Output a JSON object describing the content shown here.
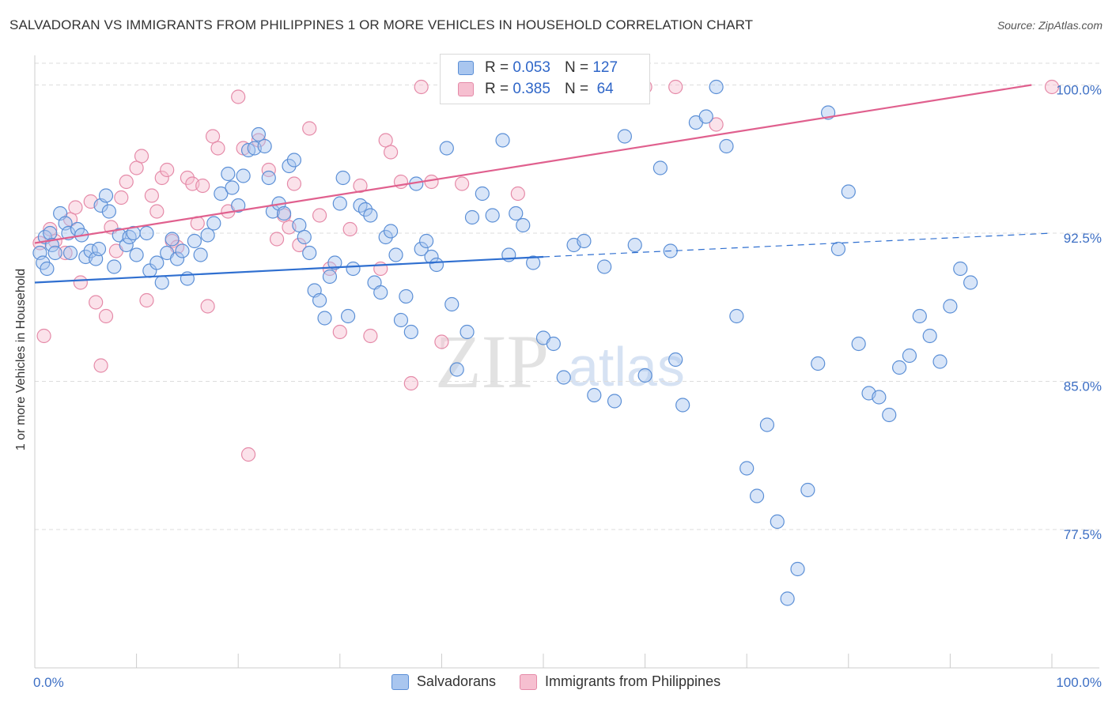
{
  "title": "SALVADORAN VS IMMIGRANTS FROM PHILIPPINES 1 OR MORE VEHICLES IN HOUSEHOLD CORRELATION CHART",
  "source": "Source: ZipAtlas.com",
  "watermark": {
    "zip": "ZIP",
    "atlas": "atlas"
  },
  "legend_top": {
    "rows": [
      {
        "r_label": "R =",
        "r_value": "0.053",
        "n_label": "N =",
        "n_value": "127"
      },
      {
        "r_label": "R =",
        "r_value": "0.385",
        "n_label": "N =",
        "n_value": "64"
      }
    ]
  },
  "colors": {
    "blue_fill": "#a9c6ef",
    "blue_stroke": "#5b8fd6",
    "blue_line": "#2f6fd0",
    "pink_fill": "#f6bfd0",
    "pink_stroke": "#e58aa8",
    "pink_line": "#e0608e",
    "axis_text": "#3d6fc4",
    "grid": "#dddddd"
  },
  "chart_data": {
    "type": "scatter",
    "title": "SALVADORAN VS IMMIGRANTS FROM PHILIPPINES 1 OR MORE VEHICLES IN HOUSEHOLD CORRELATION CHART",
    "xlabel": "",
    "ylabel": "1 or more Vehicles in Household",
    "xlim": [
      0,
      100
    ],
    "ylim": [
      70.5,
      101.5
    ],
    "x_tick_labels": [
      "0.0%",
      "100.0%"
    ],
    "y_ticks": [
      100.0,
      92.5,
      85.0,
      77.5
    ],
    "y_tick_labels": [
      "100.0%",
      "92.5%",
      "85.0%",
      "77.5%"
    ],
    "grid": true,
    "legend_position": "bottom",
    "series": [
      {
        "name": "Salvadorans",
        "color": "#5b8fd6",
        "trend": {
          "x": [
            0,
            50,
            100
          ],
          "y": [
            90.0,
            91.3,
            92.5
          ],
          "solid_until": 50
        },
        "points": [
          [
            0.5,
            91.5
          ],
          [
            0.8,
            91.0
          ],
          [
            1.2,
            90.7
          ],
          [
            1,
            92.3
          ],
          [
            1.5,
            92.5
          ],
          [
            1.7,
            91.9
          ],
          [
            2,
            91.5
          ],
          [
            2.5,
            93.5
          ],
          [
            3,
            93.0
          ],
          [
            3.3,
            92.5
          ],
          [
            3.5,
            91.5
          ],
          [
            4.2,
            92.7
          ],
          [
            4.6,
            92.4
          ],
          [
            5,
            91.3
          ],
          [
            5.5,
            91.6
          ],
          [
            6,
            91.2
          ],
          [
            6.3,
            91.7
          ],
          [
            6.5,
            93.9
          ],
          [
            7,
            94.4
          ],
          [
            7.3,
            93.6
          ],
          [
            7.8,
            90.8
          ],
          [
            8.3,
            92.4
          ],
          [
            9,
            91.9
          ],
          [
            9.3,
            92.3
          ],
          [
            9.7,
            92.5
          ],
          [
            10,
            91.4
          ],
          [
            11,
            92.5
          ],
          [
            11.3,
            90.6
          ],
          [
            12,
            91.0
          ],
          [
            12.5,
            90.0
          ],
          [
            13,
            91.5
          ],
          [
            13.5,
            92.2
          ],
          [
            14,
            91.2
          ],
          [
            14.5,
            91.6
          ],
          [
            15,
            90.2
          ],
          [
            15.7,
            92.1
          ],
          [
            16.3,
            91.4
          ],
          [
            17,
            92.4
          ],
          [
            17.6,
            93.0
          ],
          [
            18.3,
            94.5
          ],
          [
            19,
            95.5
          ],
          [
            19.4,
            94.8
          ],
          [
            20,
            93.9
          ],
          [
            20.5,
            95.4
          ],
          [
            21,
            96.7
          ],
          [
            21.6,
            96.8
          ],
          [
            22,
            97.5
          ],
          [
            22.6,
            96.9
          ],
          [
            23,
            95.3
          ],
          [
            23.4,
            93.6
          ],
          [
            24,
            94.0
          ],
          [
            24.5,
            93.5
          ],
          [
            25,
            95.9
          ],
          [
            25.5,
            96.2
          ],
          [
            26,
            92.9
          ],
          [
            26.5,
            92.3
          ],
          [
            27,
            91.5
          ],
          [
            27.5,
            89.6
          ],
          [
            28,
            89.1
          ],
          [
            28.5,
            88.2
          ],
          [
            29,
            90.3
          ],
          [
            29.5,
            91.0
          ],
          [
            30,
            94.0
          ],
          [
            30.3,
            95.3
          ],
          [
            30.8,
            88.3
          ],
          [
            31.3,
            90.7
          ],
          [
            32,
            93.9
          ],
          [
            32.5,
            93.7
          ],
          [
            33,
            93.4
          ],
          [
            33.4,
            90.0
          ],
          [
            34,
            89.5
          ],
          [
            34.5,
            92.3
          ],
          [
            35,
            92.6
          ],
          [
            35.5,
            91.4
          ],
          [
            36,
            88.1
          ],
          [
            36.5,
            89.3
          ],
          [
            37,
            87.5
          ],
          [
            37.5,
            95.0
          ],
          [
            38,
            91.7
          ],
          [
            38.5,
            92.1
          ],
          [
            39,
            91.3
          ],
          [
            39.5,
            90.9
          ],
          [
            40.5,
            96.8
          ],
          [
            41,
            88.9
          ],
          [
            41.5,
            85.6
          ],
          [
            42.5,
            87.5
          ],
          [
            43,
            93.3
          ],
          [
            44,
            94.5
          ],
          [
            45,
            93.4
          ],
          [
            46,
            97.2
          ],
          [
            46.6,
            91.4
          ],
          [
            47.3,
            93.5
          ],
          [
            48,
            92.9
          ],
          [
            49,
            91.0
          ],
          [
            50,
            87.2
          ],
          [
            51,
            86.9
          ],
          [
            52,
            85.2
          ],
          [
            53,
            91.9
          ],
          [
            54,
            92.1
          ],
          [
            55,
            84.3
          ],
          [
            56,
            90.8
          ],
          [
            57,
            84.0
          ],
          [
            58,
            97.4
          ],
          [
            59,
            91.9
          ],
          [
            60,
            85.3
          ],
          [
            61.5,
            95.8
          ],
          [
            62.5,
            91.6
          ],
          [
            63,
            86.1
          ],
          [
            63.7,
            83.8
          ],
          [
            65,
            98.1
          ],
          [
            66,
            98.4
          ],
          [
            67,
            99.9
          ],
          [
            68,
            96.9
          ],
          [
            69,
            88.3
          ],
          [
            70,
            80.6
          ],
          [
            71,
            79.2
          ],
          [
            72,
            82.8
          ],
          [
            73,
            77.9
          ],
          [
            74,
            74.0
          ],
          [
            75,
            75.5
          ],
          [
            76,
            79.5
          ],
          [
            77,
            85.9
          ],
          [
            78,
            98.6
          ],
          [
            79,
            91.7
          ],
          [
            80,
            94.6
          ],
          [
            81,
            86.9
          ],
          [
            82,
            84.4
          ],
          [
            83,
            84.2
          ],
          [
            84,
            83.3
          ],
          [
            85,
            85.7
          ],
          [
            86,
            86.3
          ],
          [
            87,
            88.3
          ],
          [
            88,
            87.3
          ],
          [
            89,
            86.0
          ],
          [
            90,
            88.8
          ],
          [
            91,
            90.7
          ],
          [
            92,
            90.0
          ]
        ]
      },
      {
        "name": "Immigrants from Philippines",
        "color": "#e58aa8",
        "trend": {
          "x": [
            0,
            98
          ],
          "y": [
            92.0,
            100.0
          ],
          "solid_until": 98
        },
        "points": [
          [
            0.5,
            92.0
          ],
          [
            0.9,
            87.3
          ],
          [
            1.5,
            92.7
          ],
          [
            2,
            92.1
          ],
          [
            3,
            91.5
          ],
          [
            3.5,
            93.2
          ],
          [
            4,
            93.8
          ],
          [
            4.5,
            90.0
          ],
          [
            5.5,
            94.1
          ],
          [
            6,
            89.0
          ],
          [
            6.5,
            85.8
          ],
          [
            7,
            88.3
          ],
          [
            7.5,
            92.8
          ],
          [
            8,
            91.6
          ],
          [
            8.5,
            94.3
          ],
          [
            9,
            95.1
          ],
          [
            10,
            95.8
          ],
          [
            10.5,
            96.4
          ],
          [
            11,
            89.1
          ],
          [
            11.5,
            94.4
          ],
          [
            12,
            93.6
          ],
          [
            12.5,
            95.3
          ],
          [
            13,
            95.7
          ],
          [
            13.5,
            92.1
          ],
          [
            14,
            91.8
          ],
          [
            15,
            95.3
          ],
          [
            15.5,
            95.0
          ],
          [
            16,
            93.0
          ],
          [
            16.5,
            94.9
          ],
          [
            17,
            88.8
          ],
          [
            17.5,
            97.4
          ],
          [
            18,
            96.8
          ],
          [
            19,
            93.6
          ],
          [
            20,
            99.4
          ],
          [
            20.5,
            96.8
          ],
          [
            21,
            81.3
          ],
          [
            22,
            97.2
          ],
          [
            23,
            95.7
          ],
          [
            23.8,
            92.2
          ],
          [
            24.5,
            93.4
          ],
          [
            25,
            92.8
          ],
          [
            25.5,
            95.0
          ],
          [
            26,
            91.9
          ],
          [
            27,
            97.8
          ],
          [
            28,
            93.4
          ],
          [
            29,
            90.7
          ],
          [
            30,
            87.5
          ],
          [
            31,
            92.7
          ],
          [
            32,
            94.9
          ],
          [
            33,
            87.3
          ],
          [
            34,
            90.7
          ],
          [
            34.5,
            97.2
          ],
          [
            35,
            96.6
          ],
          [
            36,
            95.1
          ],
          [
            37,
            84.9
          ],
          [
            38,
            99.9
          ],
          [
            39,
            95.1
          ],
          [
            40,
            87.0
          ],
          [
            42,
            95.0
          ],
          [
            47.5,
            94.5
          ],
          [
            60,
            99.9
          ],
          [
            63,
            99.9
          ],
          [
            67,
            98.0
          ],
          [
            100,
            99.9
          ]
        ]
      }
    ]
  },
  "legend_bottom": [
    "Salvadorans",
    "Immigrants from Philippines"
  ]
}
